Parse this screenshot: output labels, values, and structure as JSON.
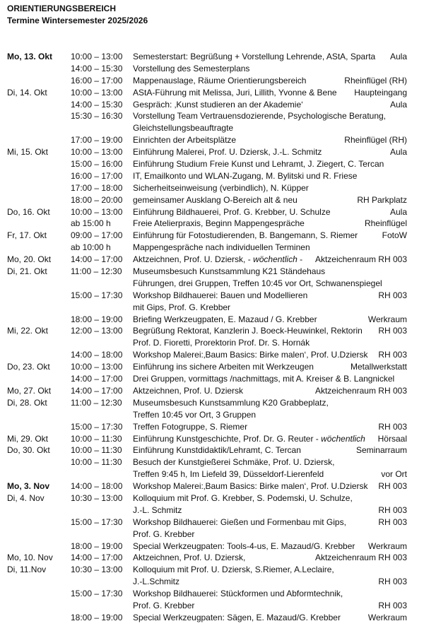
{
  "header": {
    "title": "ORIENTIERUNGSBEREICH",
    "subtitle": "Termine Wintersemester 2025/2026"
  },
  "rows": [
    {
      "day": "Mo, 13. Okt",
      "bold": true,
      "time": "10:00 – 13:00",
      "text": "Semesterstart: Begrüßung + Vorstellung Lehrende, AStA, Sparta",
      "place": "Aula"
    },
    {
      "time": "14:00 – 15:30",
      "text": "Vorstellung des Semesterplans"
    },
    {
      "time": "16:00 – 17:00",
      "text": "Mappenauslage, Räume Orientierungsbereich",
      "place": "Rheinflügel (RH)"
    },
    {
      "day": "Di, 14. Okt",
      "time": "10:00 – 13:00",
      "text": "AStA-Führung mit Melissa, Juri, Lillith, Yvonne  & Bene",
      "place": "Haupteingang"
    },
    {
      "time": "14:00 – 15:30",
      "text": "Gespräch: ‚Kunst studieren an der Akademie‘",
      "place": "Aula"
    },
    {
      "time": "15:30 – 16:30",
      "text": "Vorstellung Team Vertrauensdozierende, Psychologische Beratung,"
    },
    {
      "text": "Gleichstellungsbeauftragte"
    },
    {
      "time": "17:00 – 19:00",
      "text": "Einrichten der Arbeitsplätze",
      "place": "Rheinflügel (RH)"
    },
    {
      "day": "Mi, 15. Okt",
      "time": "10:00 – 13:00",
      "text": "Einführung Malerei, Prof. U. Dziersk, J.-L. Schmitz",
      "place": "Aula"
    },
    {
      "time": "15:00 – 16:00",
      "text": "Einführung Studium Freie Kunst und Lehramt, J. Ziegert, C. Tercan"
    },
    {
      "time": "16:00 – 17:00",
      "text": "IT, Emailkonto und WLAN-Zugang, M. Bylitski und R. Friese"
    },
    {
      "time": "17:00 – 18:00",
      "text": "Sicherheitseinweisung (verbindlich), N. Küpper"
    },
    {
      "time": "18:00 – 20:00",
      "text": "gemeinsamer Ausklang O-Bereich alt & neu",
      "place": "RH Parkplatz"
    },
    {
      "day": "Do, 16. Okt",
      "time": "10:00 – 13:00",
      "text": "Einführung Bildhauerei, Prof. G. Krebber, U. Schulze",
      "place": "Aula"
    },
    {
      "time": "ab 15:00 h",
      "text": "Freie Atelierpraxis, Beginn Mappengespräche",
      "place": "Rheinflügel"
    },
    {
      "day": "Fr, 17. Okt",
      "time": "09:00 – 17:00",
      "text": "Einführung für Fotostudierenden, B. Bangemann, S. Riemer",
      "place": "FotoW"
    },
    {
      "time": "ab 10:00 h",
      "text": "Mappengespräche nach individuellen Terminen"
    },
    {
      "day": "Mo, 20. Okt",
      "time": "14:00 – 17:00",
      "text": "Aktzeichnen, Prof. U. Dziersk, - ",
      "em": "wöchentlich",
      "after": " -",
      "place": "Aktzeichenraum RH 003"
    },
    {
      "day": "Di, 21. Okt",
      "time": "11:00 – 12:30",
      "text": "Museumsbesuch Kunstsammlung K21 Ständehaus"
    },
    {
      "text": "Führungen, drei Gruppen, Treffen 10:45 vor Ort, Schwanenspiegel"
    },
    {
      "time": "15:00 – 17:30",
      "text": "Workshop Bildhauerei: Bauen und Modellieren",
      "place": "RH 003"
    },
    {
      "text": "mit Gips, Prof. G. Krebber"
    },
    {
      "time": "18:00 – 19:00",
      "text": "Briefing Werkzeugpaten, E. Mazaud / G. Krebber",
      "place": "Werkraum"
    },
    {
      "day": "Mi, 22. Okt",
      "time": "12:00 – 13:00",
      "text": "Begrüßung Rektorat, Kanzlerin J. Boeck-Heuwinkel, Rektorin",
      "place": "RH 003"
    },
    {
      "text": "Prof. D. Fioretti, Prorektorin Prof. Dr. S. Hornák"
    },
    {
      "time": "14:00 – 18:00",
      "text": "Workshop Malerei:‚Baum Basics: Birke malen‘, Prof. U.Dziersk",
      "place": "RH 003"
    },
    {
      "day": "Do, 23. Okt",
      "time": "10:00 – 13:00",
      "text": "Einführung ins sichere Arbeiten mit Werkzeugen",
      "place": "Metallwerkstatt"
    },
    {
      "time": "14:00 – 17:00",
      "text": "Drei Gruppen, vormittags /nachmittags, mit A. Kreiser & B. Langnickel"
    },
    {
      "day": "Mo, 27. Okt",
      "time": "14:00 – 17:00",
      "text": "Aktzeichnen, Prof. U. Dziersk",
      "place": "Aktzeichenraum RH 003"
    },
    {
      "day": "Di, 28. Okt",
      "time": "11:00 – 12:30",
      "text": "Museumsbesuch Kunstsammlung K20 Grabbeplatz,"
    },
    {
      "text": "Treffen 10:45 vor Ort, 3 Gruppen"
    },
    {
      "time": "15:00 – 17:30",
      "text": "Treffen Fotogruppe, S. Riemer",
      "place": "RH 003"
    },
    {
      "day": "Mi, 29. Okt",
      "time": "10:00 – 11:30",
      "text": "Einführung Kunstgeschichte, Prof. Dr. G. Reuter - ",
      "em": "wöchentlich",
      "place": "Hörsaal"
    },
    {
      "day": "Do, 30. Okt",
      "time": "10:00 – 11:30",
      "text": "Einführung Kunstdidaktik/Lehramt, C. Tercan",
      "place": "Seminarraum"
    },
    {
      "time": "10:00 – 11:30",
      "text": "Besuch der Kunstgießerei Schmäke, Prof. U. Dziersk,"
    },
    {
      "text": "Treffen 9:45 h, Im Liefeld 39, Düsseldorf-Lierenfeld",
      "place": "vor Ort"
    },
    {
      "day": "Mo, 3. Nov",
      "bold": true,
      "time": "14:00 – 18:00",
      "text": "Workshop Malerei:‚Baum Basics: Birke malen‘, Prof. U.Dziersk",
      "place": "RH 003"
    },
    {
      "day": "Di, 4. Nov",
      "time": "10:30 – 13:00",
      "text": "Kolloquium mit Prof. G. Krebber, S. Podemski, U. Schulze,"
    },
    {
      "text": "J.-L. Schmitz",
      "place": "RH 003"
    },
    {
      "time": "15:00 – 17:30",
      "text": "Workshop Bildhauerei: Gießen und Formenbau mit Gips,",
      "place": "RH 003"
    },
    {
      "text": "Prof. G. Krebber"
    },
    {
      "time": "18:00 – 19:00",
      "text": "Special Werkzeugpaten: Tools-4-us, E. Mazaud/G. Krebber",
      "place": "Werkraum"
    },
    {
      "day": "Mo, 10. Nov",
      "time": "14:00 – 17:00",
      "text": "Aktzeichnen, Prof. U. Dziersk,",
      "place": "Aktzeichenraum RH 003"
    },
    {
      "day": "Di, 11.Nov",
      "time": "10:30 – 13:00",
      "text": "Kolloquium mit Prof. U. Dziersk,  S.Riemer, A.Leclaire,"
    },
    {
      "text": "J.-L.Schmitz",
      "place": "RH 003"
    },
    {
      "time": "15:00 – 17:30",
      "text": "Workshop Bildhauerei: Stückformen und Abformtechnik,"
    },
    {
      "text": "Prof. G. Krebber",
      "place": "RH 003"
    },
    {
      "time": "18:00 – 19:00",
      "text": "Special Werkzeugpaten: Sägen, E. Mazaud/G. Krebber",
      "place": "Werkraum"
    }
  ]
}
